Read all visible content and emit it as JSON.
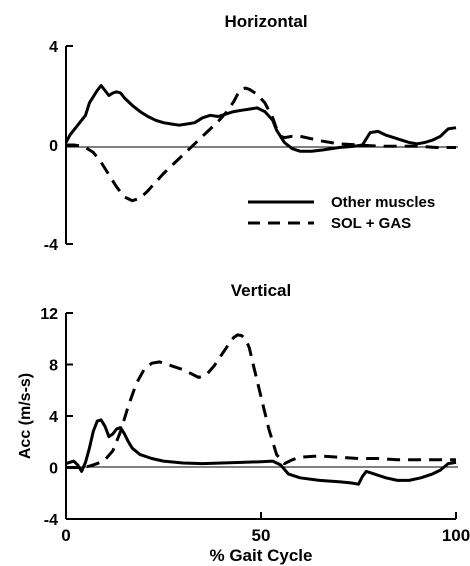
{
  "chart_data": [
    {
      "type": "line",
      "title": "Horizontal",
      "xlabel": "",
      "ylabel": "",
      "xlim": [
        0,
        100
      ],
      "ylim": [
        -4,
        4
      ],
      "yticks": [
        4,
        0,
        -4
      ],
      "xticks": [],
      "zero_line": true,
      "legend": {
        "placement": "center-right"
      },
      "series": [
        {
          "name": "Other muscles",
          "style": "solid",
          "x": [
            0,
            1,
            3,
            5,
            6,
            8,
            9,
            10,
            11,
            12,
            13,
            14,
            15,
            17,
            19,
            21,
            23,
            25,
            27,
            29,
            31,
            33,
            35,
            37,
            39,
            41,
            43,
            45,
            47,
            49,
            51,
            53,
            54,
            56,
            58,
            60,
            63,
            66,
            70,
            74,
            76,
            78,
            80,
            82,
            84,
            86,
            88,
            90,
            92,
            94,
            96,
            98,
            100
          ],
          "y": [
            0.1,
            0.4,
            0.8,
            1.2,
            1.7,
            2.2,
            2.4,
            2.2,
            2.0,
            2.1,
            2.15,
            2.1,
            1.9,
            1.6,
            1.35,
            1.15,
            1.0,
            0.9,
            0.85,
            0.8,
            0.85,
            0.9,
            1.1,
            1.2,
            1.15,
            1.25,
            1.35,
            1.4,
            1.45,
            1.5,
            1.35,
            1.0,
            0.6,
            0.1,
            -0.15,
            -0.25,
            -0.25,
            -0.2,
            -0.1,
            -0.05,
            0.0,
            0.5,
            0.55,
            0.4,
            0.3,
            0.2,
            0.1,
            0.05,
            0.1,
            0.2,
            0.35,
            0.65,
            0.7
          ]
        },
        {
          "name": "SOL + GAS",
          "style": "dashed",
          "x": [
            0,
            2,
            4,
            5,
            7,
            9,
            11,
            13,
            15,
            17,
            19,
            21,
            23,
            25,
            27,
            29,
            31,
            33,
            35,
            37,
            39,
            41,
            43,
            44,
            45,
            46,
            47,
            49,
            51,
            53,
            54,
            55,
            56,
            58,
            60,
            63,
            66,
            70,
            75,
            80,
            85,
            90,
            95,
            100
          ],
          "y": [
            0.0,
            0.0,
            -0.05,
            -0.1,
            -0.3,
            -0.7,
            -1.2,
            -1.7,
            -2.1,
            -2.25,
            -2.15,
            -1.85,
            -1.5,
            -1.15,
            -0.85,
            -0.55,
            -0.25,
            0.05,
            0.35,
            0.65,
            0.95,
            1.3,
            1.75,
            2.05,
            2.25,
            2.3,
            2.25,
            2.05,
            1.7,
            1.1,
            0.65,
            0.35,
            0.3,
            0.35,
            0.35,
            0.25,
            0.15,
            0.05,
            0.0,
            -0.05,
            -0.05,
            -0.05,
            -0.1,
            -0.1
          ]
        }
      ]
    },
    {
      "type": "line",
      "title": "Vertical",
      "xlabel": "% Gait Cycle",
      "ylabel": "Acc (m/s-s)",
      "xlim": [
        0,
        100
      ],
      "ylim": [
        -4,
        12
      ],
      "yticks": [
        12,
        8,
        4,
        0,
        -4
      ],
      "xticks": [
        0,
        50,
        100
      ],
      "zero_line": true,
      "series": [
        {
          "name": "Other muscles",
          "style": "solid",
          "x": [
            0,
            2,
            3,
            4,
            5,
            6,
            7,
            8,
            9,
            10,
            11,
            12,
            13,
            14,
            15,
            16,
            17,
            19,
            22,
            25,
            30,
            35,
            40,
            45,
            50,
            53,
            55,
            57,
            60,
            65,
            70,
            73,
            75,
            76,
            77,
            79,
            82,
            85,
            88,
            91,
            94,
            96,
            98,
            100
          ],
          "y": [
            0.3,
            0.5,
            0.2,
            -0.3,
            0.4,
            1.5,
            2.8,
            3.6,
            3.7,
            3.2,
            2.4,
            2.6,
            3.0,
            3.1,
            2.6,
            2.0,
            1.5,
            1.0,
            0.7,
            0.5,
            0.35,
            0.3,
            0.35,
            0.4,
            0.45,
            0.5,
            0.2,
            -0.5,
            -0.8,
            -1.0,
            -1.1,
            -1.2,
            -1.3,
            -0.7,
            -0.3,
            -0.5,
            -0.8,
            -1.0,
            -1.0,
            -0.8,
            -0.5,
            -0.2,
            0.3,
            0.4
          ]
        },
        {
          "name": "SOL + GAS",
          "style": "dashed",
          "x": [
            0,
            4,
            6,
            8,
            10,
            12,
            14,
            16,
            18,
            20,
            22,
            24,
            26,
            28,
            30,
            32,
            34,
            36,
            38,
            40,
            42,
            43,
            44,
            45,
            46,
            47,
            48,
            50,
            52,
            54,
            56,
            58,
            60,
            65,
            70,
            75,
            80,
            85,
            90,
            95,
            100
          ],
          "y": [
            0.0,
            0.0,
            0.1,
            0.3,
            0.6,
            1.3,
            2.8,
            4.8,
            6.5,
            7.6,
            8.1,
            8.2,
            8.0,
            7.8,
            7.6,
            7.3,
            7.0,
            7.2,
            7.9,
            8.8,
            9.7,
            10.1,
            10.3,
            10.25,
            10.0,
            9.3,
            8.0,
            5.5,
            3.0,
            1.0,
            0.3,
            0.6,
            0.8,
            0.9,
            0.8,
            0.7,
            0.7,
            0.6,
            0.6,
            0.6,
            0.6
          ]
        }
      ]
    }
  ]
}
